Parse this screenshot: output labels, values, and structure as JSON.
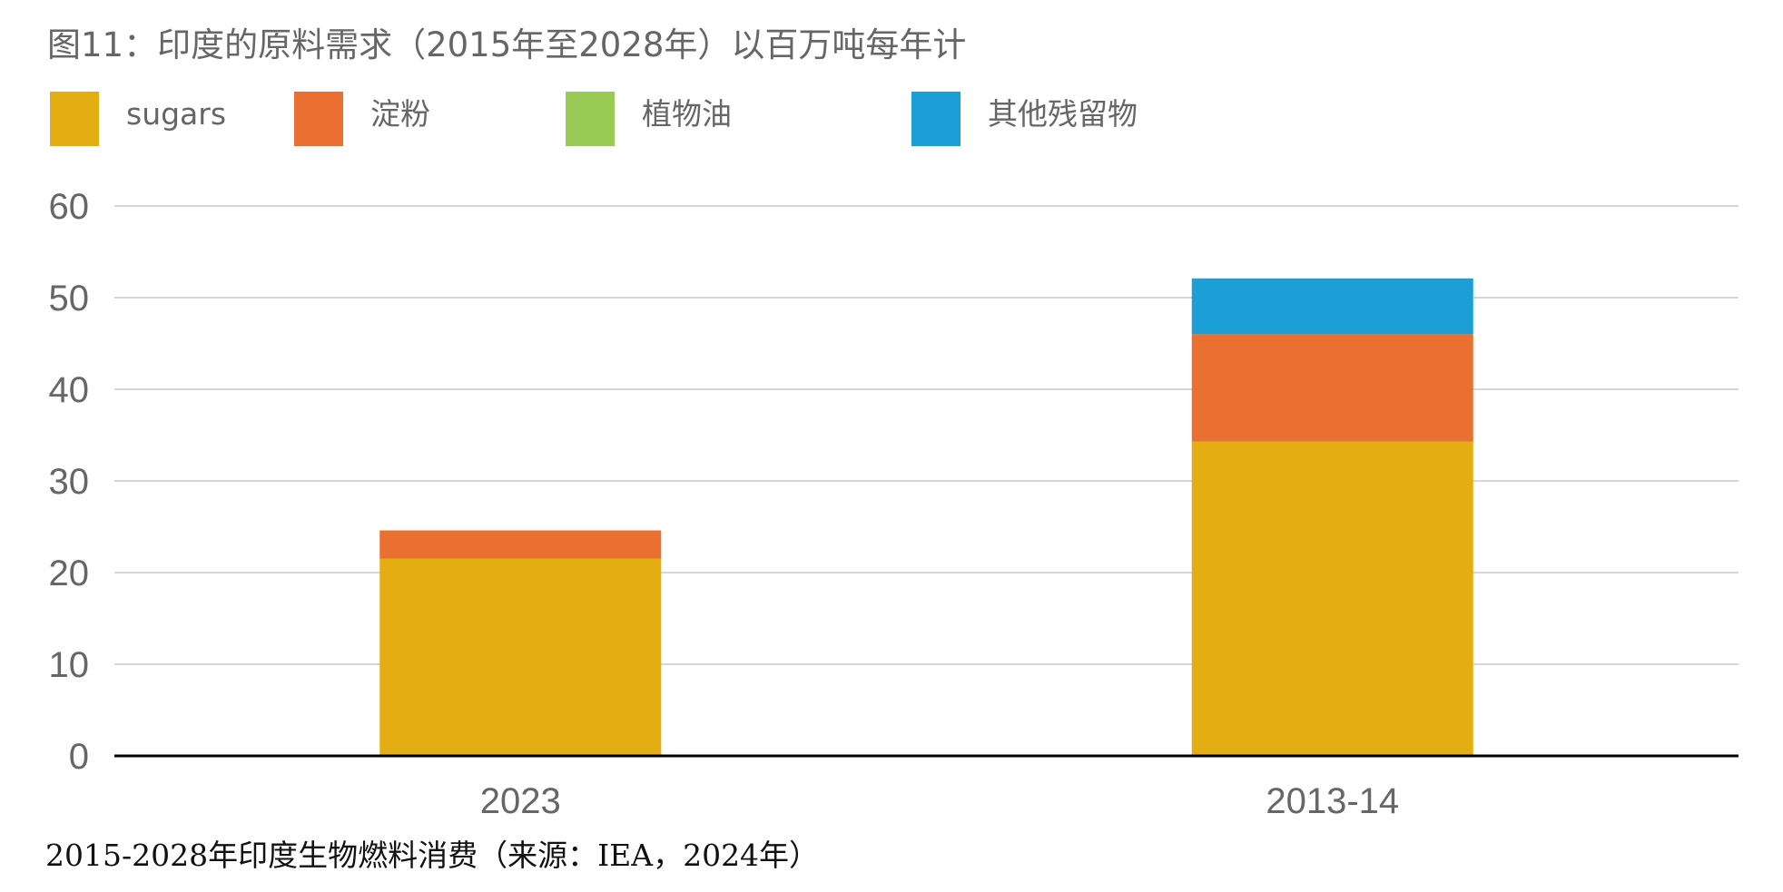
{
  "chart_data": {
    "type": "bar",
    "stacked": true,
    "title": "图11：印度的原料需求（2015年至2028年）以百万吨每年计",
    "caption": "2015-2028年印度生物燃料消费（来源：IEA，2024年）",
    "categories": [
      "2023",
      "2013-14"
    ],
    "series": [
      {
        "name": "sugars",
        "color": "#E4AD11",
        "values": [
          21.5,
          34.3
        ]
      },
      {
        "name": "淀粉",
        "color": "#EA7032",
        "values": [
          3.1,
          11.7
        ]
      },
      {
        "name": "植物油",
        "color": "#99CA53",
        "values": [
          0,
          0
        ]
      },
      {
        "name": "其他残留物",
        "color": "#1B9FD6",
        "values": [
          0,
          6.1
        ]
      }
    ],
    "ylim": [
      0,
      60
    ],
    "yticks": [
      0,
      10,
      20,
      30,
      40,
      50,
      60
    ],
    "grid": true,
    "legend_position": "top-left"
  }
}
